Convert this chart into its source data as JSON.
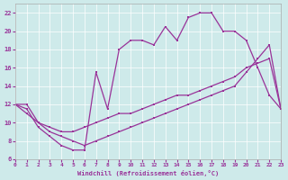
{
  "xlabel": "Windchill (Refroidissement éolien,°C)",
  "xlim": [
    0,
    23
  ],
  "ylim": [
    6,
    23
  ],
  "xticks": [
    0,
    1,
    2,
    3,
    4,
    5,
    6,
    7,
    8,
    9,
    10,
    11,
    12,
    13,
    14,
    15,
    16,
    17,
    18,
    19,
    20,
    21,
    22,
    23
  ],
  "yticks": [
    6,
    8,
    10,
    12,
    14,
    16,
    18,
    20,
    22
  ],
  "bg_color": "#ceeaea",
  "line_color": "#993399",
  "curve1_x": [
    0,
    1,
    2,
    3,
    4,
    5,
    6,
    7,
    8,
    9,
    10,
    11,
    12,
    13,
    14,
    15,
    16,
    17,
    18,
    19,
    20,
    21,
    22,
    23
  ],
  "curve1_y": [
    12,
    11,
    10,
    9.5,
    9,
    9,
    9.5,
    10,
    10.5,
    11,
    11,
    11.5,
    12,
    12.5,
    13,
    13,
    13.5,
    14,
    14.5,
    15,
    16,
    16.5,
    17,
    11.5
  ],
  "curve2_x": [
    0,
    1,
    2,
    3,
    4,
    5,
    6,
    7,
    8,
    9,
    10,
    11,
    12,
    13,
    14,
    15,
    16,
    17,
    18,
    19,
    20,
    21,
    22,
    23
  ],
  "curve2_y": [
    12,
    11.5,
    9.5,
    8.5,
    7.5,
    7,
    7,
    15.5,
    11.5,
    18,
    19,
    19,
    18.5,
    20.5,
    19,
    21.5,
    22,
    22,
    20,
    20,
    19,
    16,
    13,
    11.5
  ],
  "curve3_x": [
    0,
    1,
    2,
    3,
    4,
    5,
    6,
    7,
    8,
    9,
    10,
    11,
    12,
    13,
    14,
    15,
    16,
    17,
    18,
    19,
    20,
    21,
    22,
    23
  ],
  "curve3_y": [
    12,
    12,
    10,
    9,
    8.5,
    8,
    7.5,
    8,
    8.5,
    9,
    9.5,
    10,
    10.5,
    11,
    11.5,
    12,
    12.5,
    13,
    13.5,
    14,
    15.5,
    17,
    18.5,
    11.5
  ]
}
